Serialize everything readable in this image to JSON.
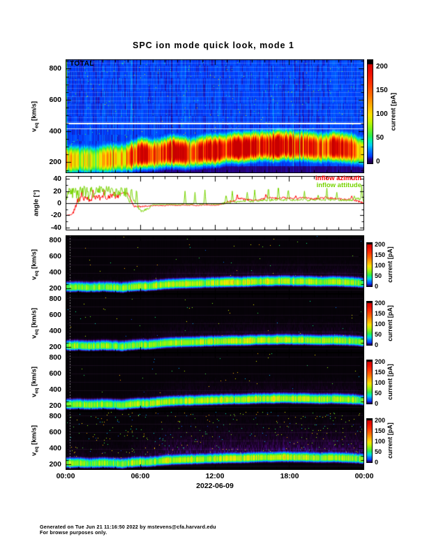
{
  "title": "SPC ion mode quick look, mode 1",
  "panels": {
    "total_label": "TOTAL"
  },
  "axes": {
    "velocity_label": {
      "prefix": "v",
      "sub": "eq",
      "suffix": " [km/s]"
    },
    "velocity_ticks": [
      800,
      600,
      400,
      200
    ],
    "angle_label": "angle [°]",
    "angle_ticks": [
      40,
      20,
      0,
      -20,
      -40
    ],
    "time_ticks": [
      "00:00",
      "06:00",
      "12:00",
      "18:00",
      "00:00"
    ],
    "date_label": "2022-06-09"
  },
  "colorbar": {
    "label": "current [pA]",
    "ticks": [
      200,
      150,
      100,
      50,
      0
    ]
  },
  "legend": {
    "azimuth": {
      "label": "inflow azimuth",
      "color": "#ff0000"
    },
    "attitude": {
      "label": "inflow attitude",
      "color": "#77d400"
    }
  },
  "footer": {
    "line1": "Generated on Tue Jun 21 11:16:50 2022 by mstevens@cfa.harvard.edu",
    "line2": "For browse purposes only."
  },
  "chart_data": [
    {
      "id": "total-spectrogram",
      "type": "heatmap",
      "panel_label": "TOTAL",
      "x_unit": "hours",
      "x_start": 0,
      "x_step": 0.5,
      "ylim_kms": [
        130,
        860
      ],
      "clim_pA": [
        0,
        200
      ],
      "white_lines_kms": [
        418,
        450
      ],
      "band_center_kms": [
        210,
        212,
        214,
        213,
        211,
        213,
        216,
        220,
        224,
        222,
        228,
        240,
        252,
        250,
        246,
        252,
        260,
        266,
        263,
        258,
        254,
        260,
        268,
        273,
        271,
        278,
        284,
        289,
        286,
        290,
        294,
        298,
        300,
        296,
        300,
        304,
        301,
        296,
        300,
        296,
        291,
        287,
        291,
        295,
        291,
        286,
        281,
        272,
        264
      ],
      "band_peak_pA": [
        95,
        98,
        92,
        88,
        85,
        88,
        92,
        96,
        100,
        108,
        128,
        155,
        185,
        172,
        162,
        186,
        200,
        212,
        202,
        190,
        152,
        182,
        202,
        212,
        206,
        216,
        222,
        218,
        204,
        212,
        222,
        216,
        206,
        200,
        212,
        216,
        206,
        192,
        182,
        172,
        162,
        152,
        172,
        192,
        182,
        162,
        142,
        122,
        100
      ]
    },
    {
      "id": "inflow-angle",
      "type": "line",
      "x_unit": "hours",
      "x_start": 0,
      "x_step": 0.5,
      "ylim_deg": [
        -45,
        45
      ],
      "series": [
        {
          "name": "inflow azimuth",
          "color": "#ff0000",
          "values": [
            -20,
            -19,
            5,
            8,
            6,
            10,
            8,
            12,
            10,
            16,
            17,
            -6,
            -6,
            -5,
            -4,
            -4,
            -4,
            -3,
            -4,
            -3,
            -3,
            -4,
            -3,
            -3,
            -4,
            -2,
            2,
            4,
            8,
            6,
            5,
            6,
            7,
            9,
            8,
            9,
            8,
            7,
            9,
            8,
            7,
            8,
            9,
            8,
            7,
            6,
            7,
            3,
            0
          ],
          "spikes": [
            [
              1.3,
              24
            ],
            [
              2.2,
              22
            ],
            [
              3.1,
              25
            ],
            [
              3.9,
              20
            ],
            [
              13.8,
              14
            ],
            [
              16.1,
              16
            ],
            [
              18.5,
              13
            ],
            [
              20.9,
              12
            ],
            [
              23.0,
              12
            ]
          ]
        },
        {
          "name": "inflow attitude",
          "color": "#77d400",
          "values": [
            5,
            15,
            10,
            18,
            12,
            20,
            15,
            18,
            12,
            15,
            10,
            5,
            -13,
            -11,
            -2,
            -2,
            -2,
            -2,
            -2,
            -2,
            -2,
            -1,
            -2,
            -1,
            -2,
            -1,
            1,
            2,
            2,
            4,
            3,
            4,
            5,
            5,
            6,
            5,
            6,
            5,
            6,
            5,
            5,
            6,
            5,
            6,
            5,
            5,
            5,
            8,
            2
          ],
          "spikes": [
            [
              0.3,
              28
            ],
            [
              0.8,
              25
            ],
            [
              1.2,
              27
            ],
            [
              1.7,
              26
            ],
            [
              2.1,
              28
            ],
            [
              2.5,
              25
            ],
            [
              2.9,
              27
            ],
            [
              3.3,
              30
            ],
            [
              3.7,
              28
            ],
            [
              4.1,
              26
            ],
            [
              4.5,
              29
            ],
            [
              4.9,
              27
            ],
            [
              5.3,
              25
            ],
            [
              5.7,
              24
            ],
            [
              9.6,
              20
            ],
            [
              10.4,
              18
            ],
            [
              11.2,
              22
            ],
            [
              12.9,
              15
            ],
            [
              13.4,
              20
            ],
            [
              14.6,
              18
            ],
            [
              15.2,
              22
            ],
            [
              16.3,
              28
            ],
            [
              17.1,
              30
            ],
            [
              17.9,
              25
            ],
            [
              19.2,
              20
            ],
            [
              20.3,
              15
            ],
            [
              21.0,
              25
            ],
            [
              21.8,
              18
            ],
            [
              23.2,
              12
            ],
            [
              23.8,
              30
            ]
          ]
        }
      ]
    },
    {
      "id": "collector-spectrograms",
      "type": "heatmap",
      "panel_count": 4,
      "x_unit": "hours",
      "x_start": 0,
      "x_step": 0.5,
      "ylim_kms": [
        130,
        860
      ],
      "clim_pA": [
        0,
        200
      ],
      "band_center_kms": [
        216,
        214,
        218,
        212,
        210,
        214,
        218,
        215,
        212,
        205,
        215,
        222,
        228,
        225,
        232,
        240,
        248,
        252,
        255,
        258,
        260,
        262,
        265,
        268,
        270,
        272,
        275,
        276,
        275,
        278,
        282,
        285,
        287,
        285,
        289,
        291,
        289,
        286,
        288,
        285,
        282,
        280,
        282,
        284,
        281,
        278,
        275,
        270,
        262
      ],
      "band_peak_pA": [
        80,
        82,
        78,
        76,
        74,
        77,
        80,
        78,
        76,
        72,
        78,
        82,
        84,
        80,
        84,
        88,
        90,
        88,
        86,
        88,
        90,
        88,
        90,
        92,
        90,
        92,
        94,
        92,
        90,
        92,
        94,
        92,
        90,
        92,
        94,
        92,
        90,
        88,
        90,
        88,
        86,
        84,
        86,
        88,
        86,
        84,
        82,
        78,
        74
      ]
    }
  ]
}
